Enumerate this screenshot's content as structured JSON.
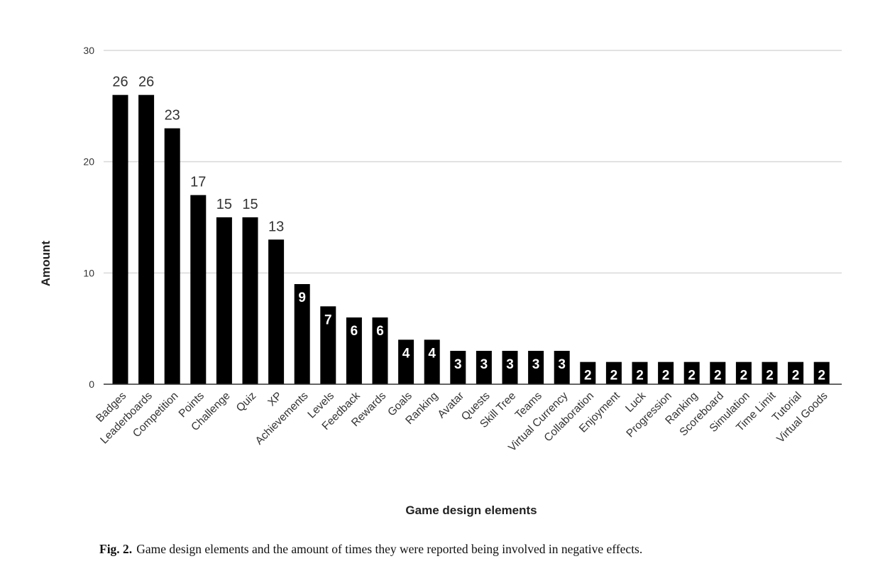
{
  "chart_data": {
    "type": "bar",
    "xlabel": "Game design elements",
    "ylabel": "Amount",
    "ylim": [
      0,
      30
    ],
    "yticks": [
      0,
      10,
      20,
      30
    ],
    "grid": true,
    "bar_color": "#000000",
    "grid_color": "#d9d9d9",
    "categories": [
      "Badges",
      "Leaderboards",
      "Competition",
      "Points",
      "Challenge",
      "Quiz",
      "XP",
      "Achievements",
      "Levels",
      "Feedback",
      "Rewards",
      "Goals",
      "Ranking",
      "Avatar",
      "Quests",
      "Skill Tree",
      "Teams",
      "Virtual Currency",
      "Collaboration",
      "Enjoyment",
      "Luck",
      "Progression",
      "Ranking",
      "Scoreboard",
      "Simulation",
      "Time Limit",
      "Tutorial",
      "Virtual Goods"
    ],
    "values": [
      26,
      26,
      23,
      17,
      15,
      15,
      13,
      9,
      7,
      6,
      6,
      4,
      4,
      3,
      3,
      3,
      3,
      3,
      2,
      2,
      2,
      2,
      2,
      2,
      2,
      2,
      2,
      2
    ]
  },
  "caption": {
    "label": "Fig. 2.",
    "text": "Game design elements and the amount of times they were reported being involved in negative effects."
  }
}
